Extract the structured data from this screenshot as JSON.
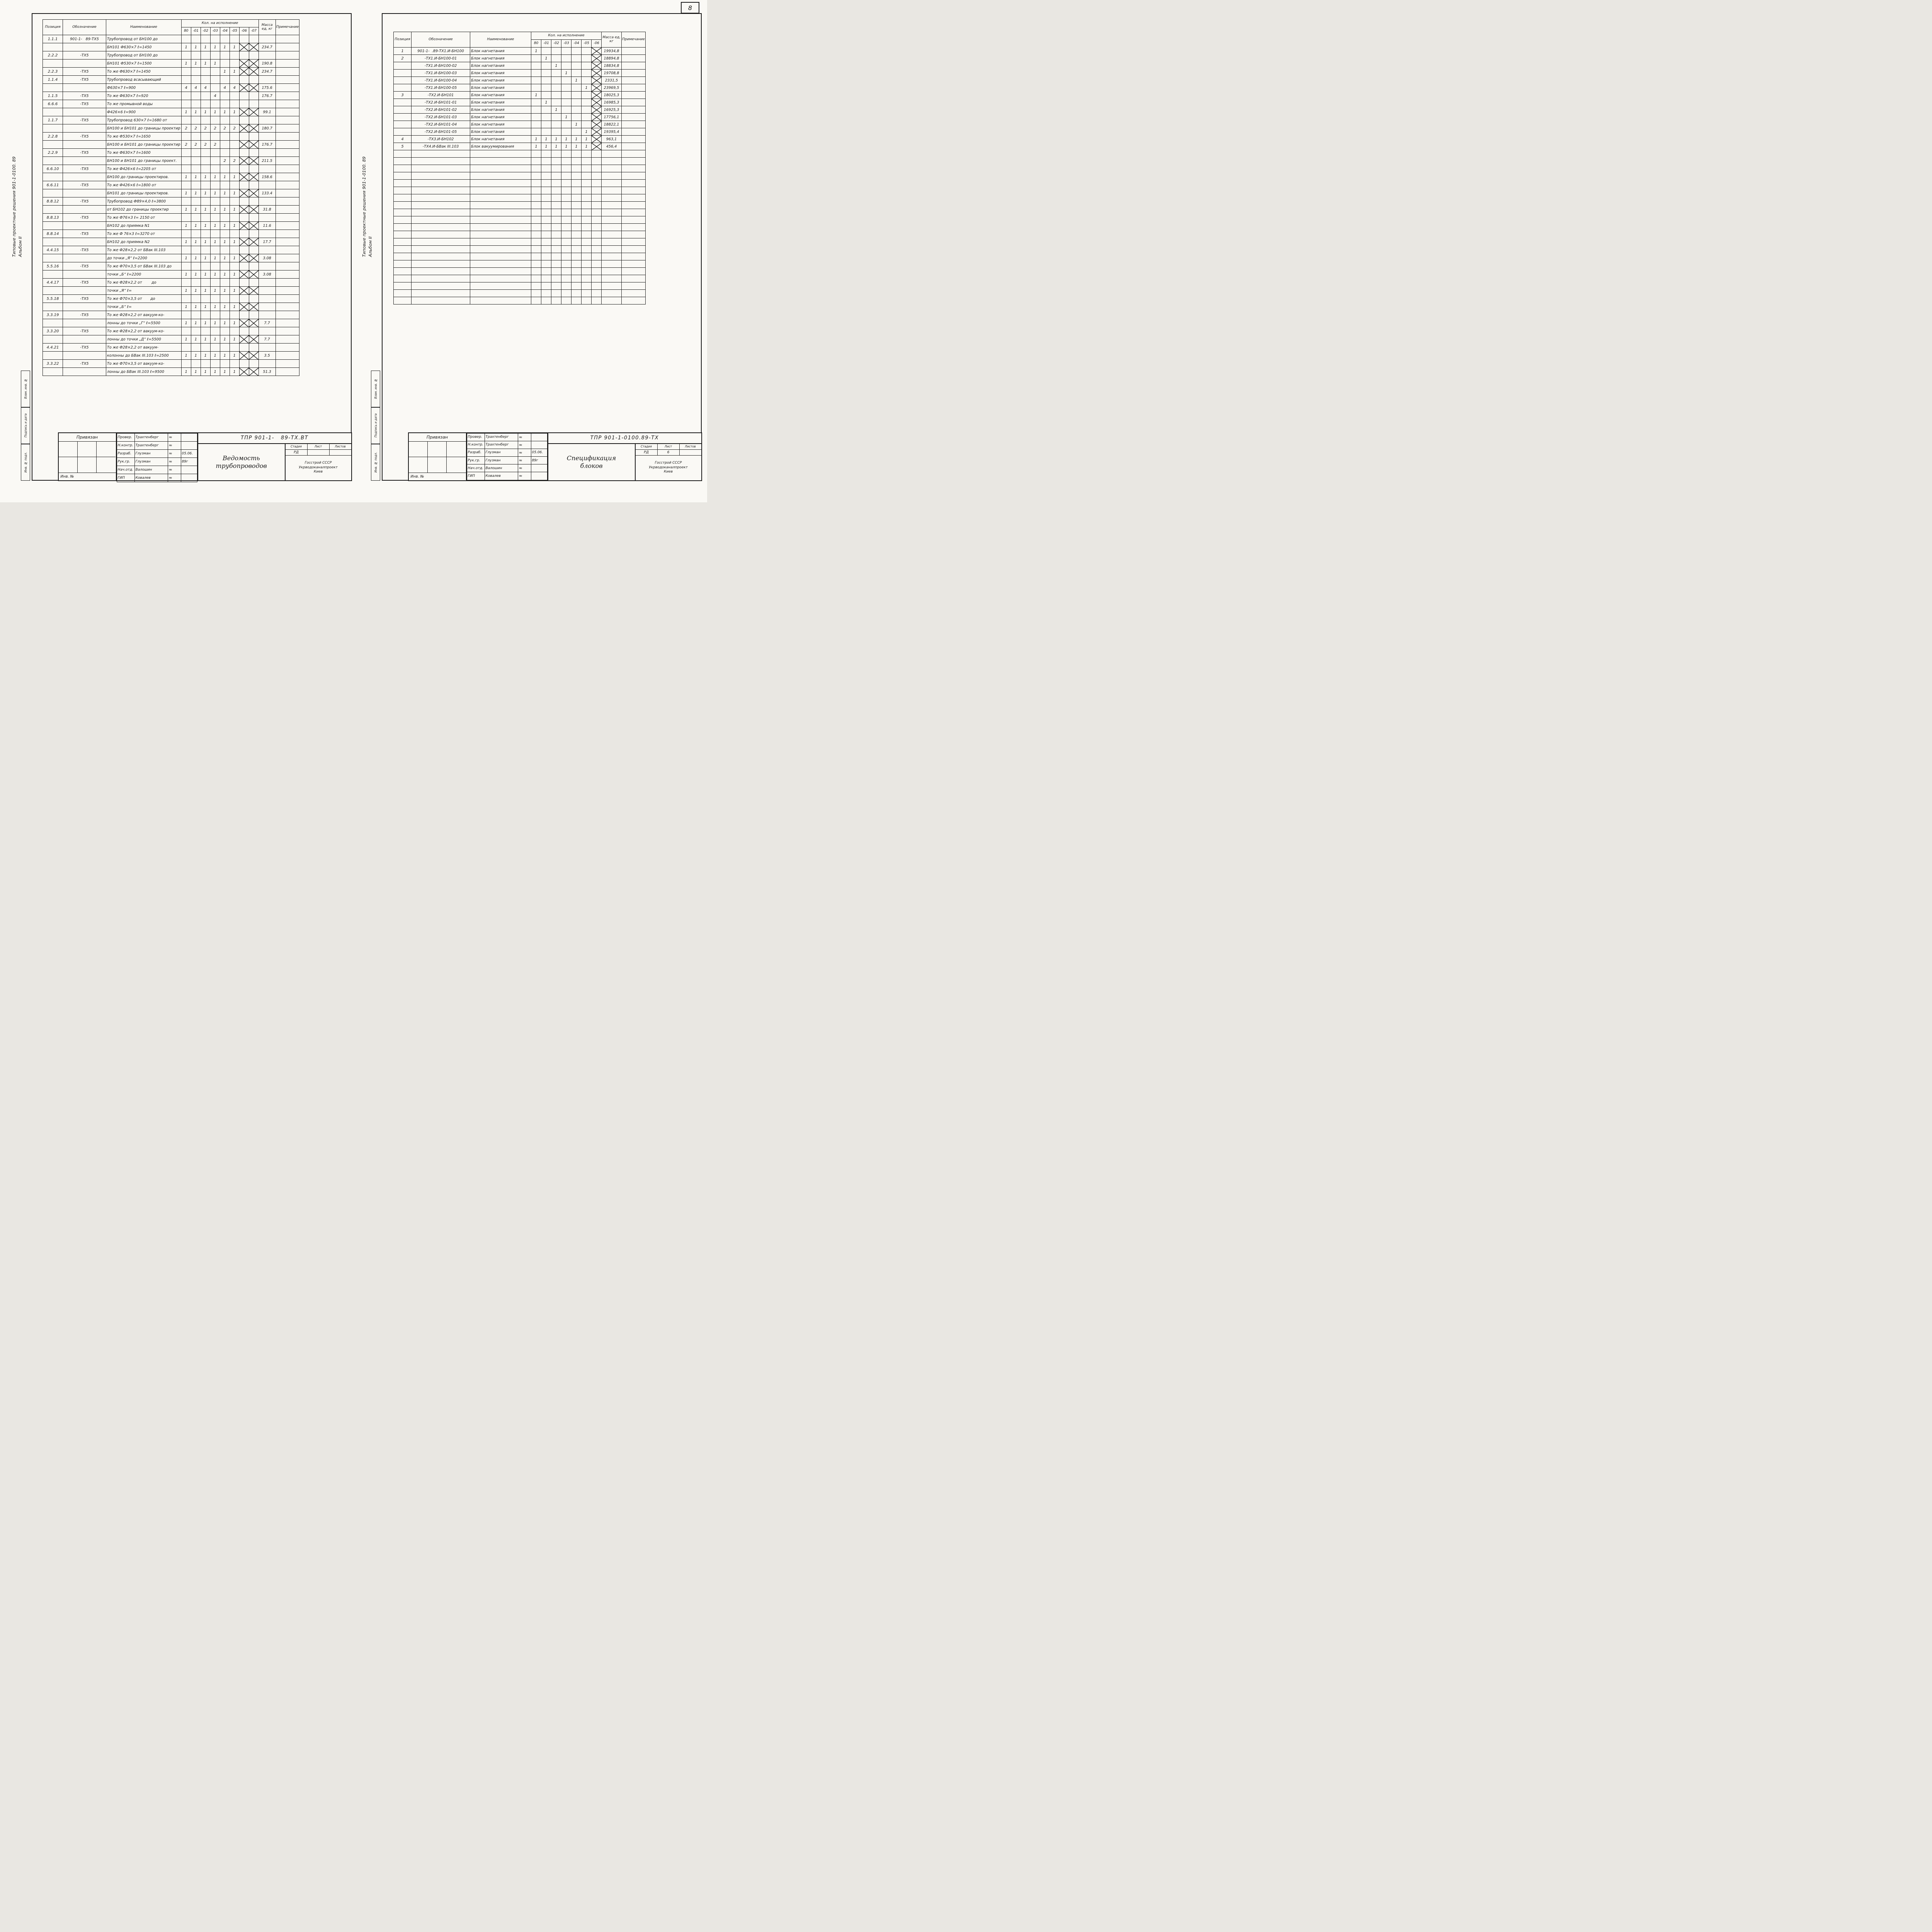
{
  "page_number": "8",
  "margin": {
    "series_note": "Типовые проектные решения 901-1-0100.  89",
    "album": "Альбом II",
    "box_top": "Взам. инв. №",
    "box_mid": "Подпись и дата",
    "box_bottom": "Инв. № подл."
  },
  "table_headers": {
    "pos": "Позиция",
    "oboz": "Обозначение",
    "name": "Наименование",
    "qty_group": "Кол. на исполнение",
    "mass": "Масса ед, кг",
    "note": "Примечание"
  },
  "left": {
    "qty_cols": [
      "80",
      "-01",
      "-02",
      "-03",
      "-04",
      "-05",
      "-06",
      "-07"
    ],
    "empty_rows": 0,
    "rows": [
      {
        "p": "1.1.1",
        "o": "901-1-   89-ТХ5",
        "n": "Трубопровод от БН100 до"
      },
      {
        "n": "БН101 Ф630×7  ℓ=1450",
        "q": [
          "1",
          "1",
          "1",
          "1",
          "1",
          "1",
          "X",
          "X"
        ],
        "m": "234.7"
      },
      {
        "p": "2.2.2",
        "o": "-ТХ5",
        "n": "Трубопровод от БН100 до"
      },
      {
        "n": "БН101 Ф530×7  ℓ=1500",
        "q": [
          "1",
          "1",
          "1",
          "1",
          "",
          "",
          "X",
          "X"
        ],
        "m": "190.8"
      },
      {
        "p": "2.2.3",
        "o": "-ТХ5",
        "n": "То же Ф630×7  ℓ=1450",
        "q": [
          "",
          "",
          "",
          "",
          "1",
          "1",
          "X",
          "X"
        ],
        "m": "234.7"
      },
      {
        "p": "1.1.4",
        "o": "-ТХ5",
        "n": "Трубопровод всасывающий"
      },
      {
        "n": "Ф630×7   ℓ=900",
        "q": [
          "4",
          "4",
          "4",
          "",
          "4",
          "4",
          "X",
          "X"
        ],
        "m": "175.6"
      },
      {
        "p": "1.1.5",
        "o": "-ТХ5",
        "n": "То же Ф630×7  ℓ=920",
        "q": [
          "",
          "",
          "",
          "4",
          "",
          "",
          "",
          ""
        ],
        "m": "176.7"
      },
      {
        "p": "6.6.6",
        "o": "-ТХ5",
        "n": "То же промывной воды"
      },
      {
        "n": "Ф426×6  ℓ=900",
        "q": [
          "1",
          "1",
          "1",
          "1",
          "1",
          "1",
          "X",
          "X"
        ],
        "m": "99.1"
      },
      {
        "p": "1.1.7",
        "o": "-ТХ5",
        "n": "Трубопровод 630×7 ℓ=1680 от"
      },
      {
        "n": "БН100 и БН101 до границы проектир",
        "q": [
          "2",
          "2",
          "2",
          "2",
          "2",
          "2",
          "X",
          "X"
        ],
        "m": "180.7"
      },
      {
        "p": "2.2.8",
        "o": "-ТХ5",
        "n": "То же Ф530×7 ℓ=1650"
      },
      {
        "n": "БН100 и БН101 до границы проектир",
        "q": [
          "2",
          "2",
          "2",
          "2",
          "",
          "",
          "X",
          "X"
        ],
        "m": "176.7"
      },
      {
        "p": "2.2.9",
        "o": "-ТХ5",
        "n": "То же Ф630×7 ℓ=1600"
      },
      {
        "n": "БН100 и БН101 до границы проект.",
        "q": [
          "",
          "",
          "",
          "",
          "2",
          "2",
          "X",
          "X"
        ],
        "m": "211.5"
      },
      {
        "p": "6.6.10",
        "o": "-ТХ5",
        "n": "То же Ф426×6 ℓ=2205 от"
      },
      {
        "n": "БН100 до границы проектиров.",
        "q": [
          "1",
          "1",
          "1",
          "1",
          "1",
          "1",
          "X",
          "X"
        ],
        "m": "158.6"
      },
      {
        "p": "6.6.11",
        "o": "-ТХ5",
        "n": "То же Ф426×6 ℓ=1800 от"
      },
      {
        "n": "БН101 до границы проектиров.",
        "q": [
          "1",
          "1",
          "1",
          "1",
          "1",
          "1",
          "X",
          "X"
        ],
        "m": "133.4"
      },
      {
        "p": "8.8.12",
        "o": "-ТХ5",
        "n": "Трубопровод Ф89×4,0 ℓ=3800"
      },
      {
        "n": "от БН102 до границы проектир",
        "q": [
          "1",
          "1",
          "1",
          "1",
          "1",
          "1",
          "X",
          "X"
        ],
        "m": "31.8"
      },
      {
        "p": "8.8.13",
        "o": "-ТХ5",
        "n": "То же Ф76×3 ℓ= 2150 от"
      },
      {
        "n": "БН102 до приямка N1",
        "q": [
          "1",
          "1",
          "1",
          "1",
          "1",
          "1",
          "X",
          "X"
        ],
        "m": "11.6"
      },
      {
        "p": "8.8.14",
        "o": "-ТХ5",
        "n": "То же Ф 76×3 ℓ=3270 от"
      },
      {
        "n": "БН102 до приямка N2",
        "q": [
          "1",
          "1",
          "1",
          "1",
          "1",
          "1",
          "X",
          "X"
        ],
        "m": "17.7"
      },
      {
        "p": "4.4.15",
        "o": "-ТХ5",
        "n": "То же Ф28×2,2 от БВак III.103"
      },
      {
        "n": "до точки „Я“ ℓ=2200",
        "q": [
          "1",
          "1",
          "1",
          "1",
          "1",
          "1",
          "X",
          "X"
        ],
        "m": "3.08"
      },
      {
        "p": "5.5.16",
        "o": "-ТХ5",
        "n": "То же Ф70×3,5 от БВак III.103 до"
      },
      {
        "n": "точки „Б“ ℓ=2200",
        "q": [
          "1",
          "1",
          "1",
          "1",
          "1",
          "1",
          "X",
          "X"
        ],
        "m": "3.08"
      },
      {
        "p": "4.4.17",
        "o": "-ТХ5",
        "n": "То же Ф28×2,2 от        до"
      },
      {
        "n": "точки „Я“ ℓ=",
        "q": [
          "1",
          "1",
          "1",
          "1",
          "1",
          "1",
          "X",
          "X"
        ],
        "m": ""
      },
      {
        "p": "5.5.18",
        "o": "-ТХ5",
        "n": "То же Ф70×3,5 от       до"
      },
      {
        "n": "точки „Б“ ℓ=",
        "q": [
          "1",
          "1",
          "1",
          "1",
          "1",
          "1",
          "X",
          "X"
        ],
        "m": ""
      },
      {
        "p": "3.3.19",
        "o": "-ТХ5",
        "n": "То же Ф28×2,2 от вакуум-ко-"
      },
      {
        "n": "лонны до точки „Г“ ℓ=5500",
        "q": [
          "1",
          "1",
          "1",
          "1",
          "1",
          "1",
          "X",
          "X"
        ],
        "m": "7.7"
      },
      {
        "p": "3.3.20",
        "o": "-ТХ5",
        "n": "То же Ф28×2,2 от вакуум-ко-"
      },
      {
        "n": "лонны до точки „Д“ ℓ=5500",
        "q": [
          "1",
          "1",
          "1",
          "1",
          "1",
          "1",
          "X",
          "X"
        ],
        "m": "7.7"
      },
      {
        "p": "4.4.21",
        "o": "-ТХ5",
        "n": "То же Ф28×2,2 от вакуум-"
      },
      {
        "n": "колонны до БВак III.103 ℓ=2500",
        "q": [
          "1",
          "1",
          "1",
          "1",
          "1",
          "1",
          "X",
          "X"
        ],
        "m": "3.5"
      },
      {
        "p": "3.3.22",
        "o": "-ТХ5",
        "n": "То же Ф70×3,5 от вакуум-ко-"
      },
      {
        "n": "лонны до БВак III.103 ℓ=9500",
        "q": [
          "1",
          "1",
          "1",
          "1",
          "1",
          "1",
          "X",
          "X"
        ],
        "m": "51.3"
      }
    ],
    "stamp": {
      "attach": "Привязан",
      "inv": "Инв. №",
      "rows": [
        {
          "role": "Провер.",
          "name": "Трахтенберг",
          "date": ""
        },
        {
          "role": "Н.контр.",
          "name": "Трахтенберг",
          "date": ""
        },
        {
          "role": "Разраб.",
          "name": "Глузман",
          "date": "05.06."
        },
        {
          "role": "Рук.гр.",
          "name": "Глузман",
          "date": "89г"
        },
        {
          "role": "Нач.отд.",
          "name": "Валошин",
          "date": ""
        },
        {
          "role": "ГИП",
          "name": "Ковалев",
          "date": ""
        }
      ],
      "doc_code": "ТПР 901-1-   89-ТХ.ВТ",
      "title": [
        "Ведомость",
        "трубопроводов"
      ],
      "stage_label": "Стадия",
      "list_label": "Лист",
      "listov_label": "Листов",
      "stage": "РД",
      "list": "",
      "listov": "",
      "org": [
        "Госстрой СССР",
        "Укрводоканалпроект",
        "Киев"
      ]
    }
  },
  "right": {
    "qty_cols": [
      "80",
      "-01",
      "-02",
      "-03",
      "-04",
      "-05",
      "-06"
    ],
    "empty_rows": 21,
    "rows": [
      {
        "p": "1",
        "o": "901-1-  .89-ТХ1.И-БН100",
        "n": "Блок нагнетания",
        "q": [
          "1",
          "",
          "",
          "",
          "",
          "",
          "X"
        ],
        "m": "19934,8"
      },
      {
        "p": "2",
        "o": "-ТХ1.И-БН100-01",
        "n": "Блок нагнетания",
        "q": [
          "",
          "1",
          "",
          "",
          "",
          "",
          "X"
        ],
        "m": "18894,8"
      },
      {
        "o": "-ТХ1.И-БН100-02",
        "n": "Блок нагнетания",
        "q": [
          "",
          "",
          "1",
          "",
          "",
          "",
          "X"
        ],
        "m": "18834,8"
      },
      {
        "o": "-ТХ1.И-БН100-03",
        "n": "Блок нагнетания",
        "q": [
          "",
          "",
          "",
          "1",
          "",
          "",
          "X"
        ],
        "m": "19708,8"
      },
      {
        "o": "-ТХ1.И-БН100-04",
        "n": "Блок нагнетания",
        "q": [
          "",
          "",
          "",
          "",
          "1",
          "",
          "X"
        ],
        "m": "2331,5"
      },
      {
        "o": "-ТХ1.И-БН100-05",
        "n": "Блок нагнетания",
        "q": [
          "",
          "",
          "",
          "",
          "",
          "1",
          "X"
        ],
        "m": "23969,5"
      },
      {
        "p": "3",
        "o": "-ТХ2.И-БН101",
        "n": "Блок нагнетания",
        "q": [
          "1",
          "",
          "",
          "",
          "",
          "",
          "X"
        ],
        "m": "18025,3"
      },
      {
        "o": "-ТХ2.И-БН101-01",
        "n": "Блок нагнетания",
        "q": [
          "",
          "1",
          "",
          "",
          "",
          "",
          "X"
        ],
        "m": "16985,3"
      },
      {
        "o": "-ТХ2.И-БН101-02",
        "n": "Блок нагнетания",
        "q": [
          "",
          "",
          "1",
          "",
          "",
          "",
          "X"
        ],
        "m": "16925,3"
      },
      {
        "o": "-ТХ2.И-БН101-03",
        "n": "Блок нагнетания",
        "q": [
          "",
          "",
          "",
          "1",
          "",
          "",
          "X"
        ],
        "m": "17756,1"
      },
      {
        "o": "-ТХ2.И-БН101-04",
        "n": "Блок нагнетания",
        "q": [
          "",
          "",
          "",
          "",
          "1",
          "",
          "X"
        ],
        "m": "18822,1"
      },
      {
        "o": "-ТХ2.И-БН101-05",
        "n": "Блок нагнетания",
        "q": [
          "",
          "",
          "",
          "",
          "",
          "1",
          "X"
        ],
        "m": "19395,4"
      },
      {
        "p": "4",
        "o": "-ТХ3.И-БН102",
        "n": "Блок нагнетания",
        "q": [
          "1",
          "1",
          "1",
          "1",
          "1",
          "1",
          "X"
        ],
        "m": "963,1"
      },
      {
        "p": "5",
        "o": "-ТХ4.И-БВак III.103",
        "n": "Блок вакуумирования",
        "q": [
          "1",
          "1",
          "1",
          "1",
          "1",
          "1",
          "X"
        ],
        "m": "456,4"
      }
    ],
    "stamp": {
      "attach": "Привязан",
      "inv": "Инв. №",
      "rows": [
        {
          "role": "Провер.",
          "name": "Трахтенберг",
          "date": ""
        },
        {
          "role": "Н.контр.",
          "name": "Трахтенберг",
          "date": ""
        },
        {
          "role": "Разраб.",
          "name": "Глузман",
          "date": "05.06."
        },
        {
          "role": "Рук.гр.",
          "name": "Глузман",
          "date": "89г"
        },
        {
          "role": "Нач.отд.",
          "name": "Валошин",
          "date": ""
        },
        {
          "role": "ГИП",
          "name": "Ковалев",
          "date": ""
        }
      ],
      "doc_code": "ТПР 901-1-0100.89-ТХ",
      "title": [
        "Спецификация",
        "блоков"
      ],
      "stage_label": "Стадия",
      "list_label": "Лист",
      "listov_label": "Листов",
      "stage": "РД",
      "list": "6",
      "listov": "",
      "org": [
        "Госстрой СССР",
        "Укрводоканалпроект",
        "Киев"
      ]
    }
  }
}
